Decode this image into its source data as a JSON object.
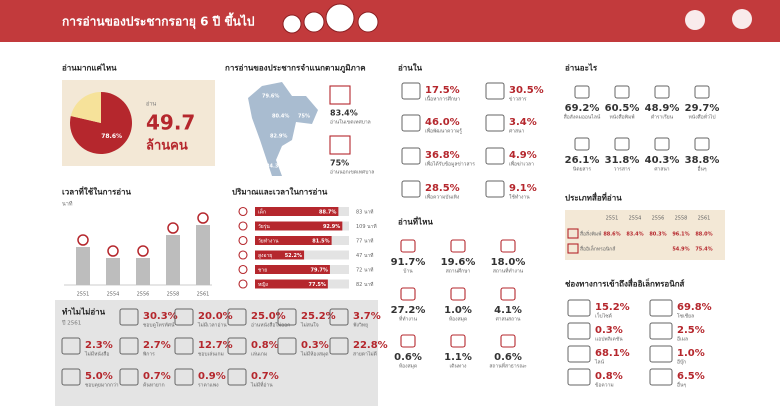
{
  "header": {
    "title": "การอ่านของประชากรอายุ 6 ปี ขึ้นไป"
  },
  "chart_data": [
    {
      "type": "pie",
      "title": "อ่านมากแค่ไหน",
      "categories": [
        null,
        null
      ],
      "values": [
        78.6,
        21.4
      ],
      "value_labels": [
        "78.6%",
        null
      ],
      "colors": [
        "#b5272d",
        "#f6e29a"
      ],
      "total_label": "อ่าน",
      "total": "49.7",
      "total_unit": "ล้านคน"
    },
    {
      "type": "bar",
      "title": "เวลาที่ใช้ในการอ่าน",
      "subtitle": "นาที",
      "categories": [
        "2551",
        "2554",
        "2556",
        "2558",
        "2561"
      ],
      "values": [
        38,
        27,
        27,
        50,
        60
      ],
      "ylim": [
        0,
        70
      ],
      "color": "#bdbdbd",
      "icon_color": "#b5272d"
    },
    {
      "type": "hbar",
      "title": "ปริมาณและเวลาในการอ่าน",
      "categories": [
        "เด็ก",
        "วัยรุ่น",
        "วัยทำงาน",
        "สูงอายุ",
        "ชาย",
        "หญิง"
      ],
      "values": [
        88.7,
        92.9,
        81.5,
        52.2,
        79.7,
        77.5
      ],
      "value_labels": [
        "88.7%",
        "92.9%",
        "81.5%",
        "52.2%",
        "79.7%",
        "77.5%"
      ],
      "xlim": [
        0,
        100
      ],
      "color": "#b5272d",
      "track_color": "#e3e3e3",
      "minutes": [
        "83 นาที",
        "109 นาที",
        "77 นาที",
        "47 นาที",
        "72 นาที",
        "82 นาที"
      ]
    }
  ],
  "region": {
    "title": "การอ่านของประชากรจำแนกตามภูมิภาค",
    "map_labels": [
      "79.6%",
      "80.4%",
      "75%",
      "82.9%",
      "84.3%"
    ],
    "stats": [
      {
        "value": "83.4%",
        "label": "อ่านในเขตเทศบาล"
      },
      {
        "value": "75%",
        "label": "อ่านนอกเขตเทศบาล"
      }
    ]
  },
  "purposes": {
    "title": "อ่านใน",
    "items": [
      {
        "value": "17.5%",
        "label": "เนื้อหาการศึกษา"
      },
      {
        "value": "30.5%",
        "label": "ข่าวสาร"
      },
      {
        "value": "46.0%",
        "label": "เพื่อพัฒนาความรู้"
      },
      {
        "value": "3.4%",
        "label": "ศาสนา"
      },
      {
        "value": "36.8%",
        "label": "เพื่อได้รับข้อมูลข่าวสาร"
      },
      {
        "value": "4.9%",
        "label": "เพื่อฆ่าเวลา"
      },
      {
        "value": "28.5%",
        "label": "เพื่อความบันเทิง"
      },
      {
        "value": "9.1%",
        "label": "ใช้ทำงาน"
      }
    ]
  },
  "places": {
    "title": "อ่านที่ไหน",
    "items": [
      {
        "value": "91.7%",
        "label": "บ้าน"
      },
      {
        "value": "19.6%",
        "label": "สถานศึกษา"
      },
      {
        "value": "18.0%",
        "label": "สถานที่ทำงาน"
      },
      {
        "value": "27.2%",
        "label": "ที่ทำงาน"
      },
      {
        "value": "1.0%",
        "label": "ห้องสมุด"
      },
      {
        "value": "4.1%",
        "label": "ศาสนสถาน"
      },
      {
        "value": "0.6%",
        "label": "ห้องสมุด"
      },
      {
        "value": "1.1%",
        "label": "เดินทาง"
      },
      {
        "value": "0.6%",
        "label": "สถานที่สาธารณะ"
      }
    ]
  },
  "genres": {
    "title": "อ่านอะไร",
    "items": [
      {
        "value": "69.2%",
        "label": "สื่อสังคมออนไลน์"
      },
      {
        "value": "60.5%",
        "label": "หนังสือพิมพ์"
      },
      {
        "value": "48.9%",
        "label": "ตำราเรียน"
      },
      {
        "value": "29.7%",
        "label": "หนังสือทั่วไป"
      },
      {
        "value": "26.1%",
        "label": "นิตยสาร"
      },
      {
        "value": "31.8%",
        "label": "วารสาร"
      },
      {
        "value": "40.3%",
        "label": "ศาสนา"
      },
      {
        "value": "38.8%",
        "label": "อื่นๆ"
      }
    ]
  },
  "media": {
    "title": "ประเภทสื่อที่อ่าน",
    "header": [
      "2551",
      "2554",
      "2556",
      "2558",
      "2561"
    ],
    "rows": [
      {
        "label": "สื่อสิ่งพิมพ์",
        "cells": [
          "88.6%",
          "83.4%",
          "80.3%",
          "96.1%",
          "88.0%"
        ]
      },
      {
        "label": "สื่ออิเล็กทรอนิกส์",
        "cells": [
          null,
          null,
          null,
          "54.9%",
          "75.4%"
        ]
      }
    ]
  },
  "channels": {
    "title": "ช่องทางการเข้าถึงสื่ออิเล็กทรอนิกส์",
    "items": [
      {
        "value": "15.2%",
        "label": "เว็บไซต์"
      },
      {
        "value": "69.8%",
        "label": "โซเชียล"
      },
      {
        "value": "0.3%",
        "label": "แอปพลิเคชัน"
      },
      {
        "value": "2.5%",
        "label": "อีเมล"
      },
      {
        "value": "68.1%",
        "label": "ไลน์"
      },
      {
        "value": "1.0%",
        "label": "อีบุ๊ก"
      },
      {
        "value": "0.8%",
        "label": "ข้อความ"
      },
      {
        "value": "6.5%",
        "label": "อื่นๆ"
      }
    ]
  },
  "reasons": {
    "title": "ทำไมไม่อ่าน",
    "subtitle": "ปี 2561",
    "items": [
      {
        "value": "30.3%",
        "label": "ชอบดูโทรทัศน์"
      },
      {
        "value": "20.0%",
        "label": "ไม่มีเวลาอ่าน"
      },
      {
        "value": "25.0%",
        "label": "อ่านหนังสือไม่ออก"
      },
      {
        "value": "25.2%",
        "label": "ไม่สนใจ"
      },
      {
        "value": "3.7%",
        "label": "ฟังวิทยุ"
      },
      {
        "value": "2.3%",
        "label": "ไม่มีหนังสือ"
      },
      {
        "value": "2.7%",
        "label": "พิการ"
      },
      {
        "value": "12.7%",
        "label": "ชอบเล่นเกม"
      },
      {
        "value": "0.8%",
        "label": "เล่นเกม"
      },
      {
        "value": "0.3%",
        "label": "ไม่มีห้องสมุด"
      },
      {
        "value": "22.8%",
        "label": "สายตาไม่ดี"
      },
      {
        "value": "5.0%",
        "label": "ชอบคุยมากกว่า"
      },
      {
        "value": "0.7%",
        "label": "ค้นหายาก"
      },
      {
        "value": "0.9%",
        "label": "ราคาแพง"
      },
      {
        "value": "0.7%",
        "label": "ไม่มีที่อ่าน"
      }
    ]
  }
}
